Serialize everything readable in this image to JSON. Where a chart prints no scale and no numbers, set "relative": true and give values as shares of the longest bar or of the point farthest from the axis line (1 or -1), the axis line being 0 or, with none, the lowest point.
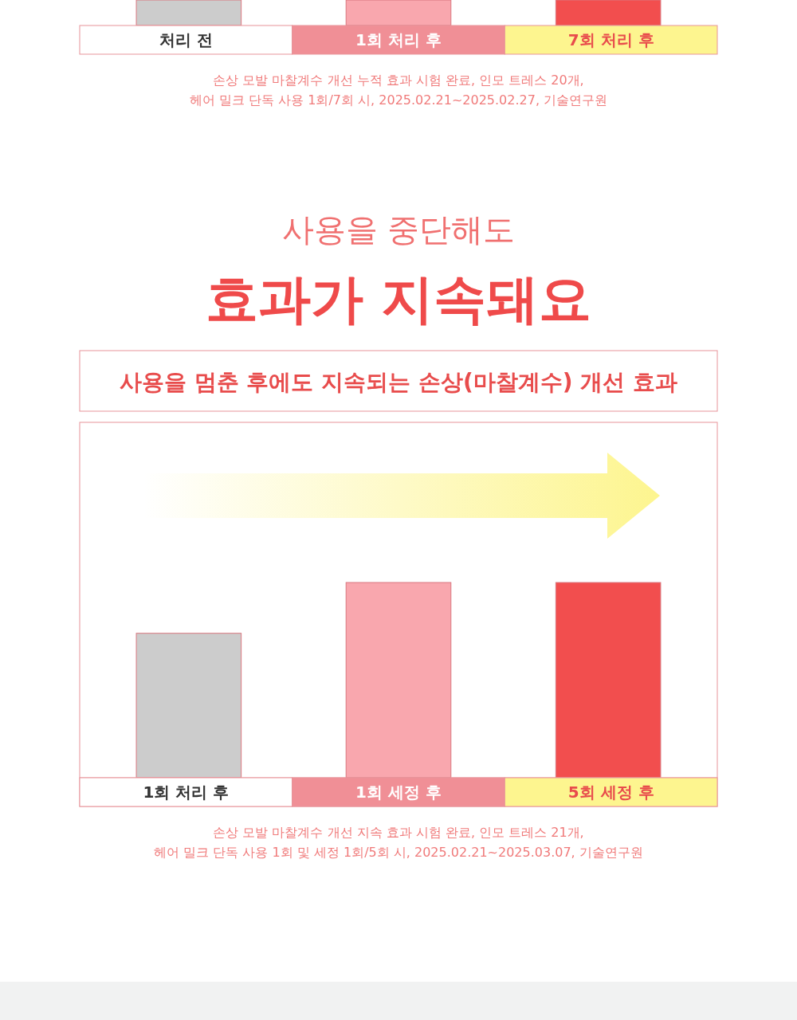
{
  "chart_data": [
    {
      "type": "other",
      "categories": [
        "처리 전",
        "1회 처리 후",
        "7회 처리 후"
      ],
      "annotations": [
        "손상 모발 마찰계수 개선 누적 효과 시험 완료, 인모 트레스 20개,",
        "헤어 밀크 단독 사용 1회/7회 시, 2025.02.21~2025.02.27, 기술연구원"
      ]
    },
    {
      "type": "bar",
      "subtitle": "사용을 중단해도",
      "title": "효과가 지속돼요",
      "categories": [
        "1회 처리 후",
        "1회 세정 후",
        "5회 세정 후"
      ],
      "values": [
        0.74,
        1,
        1
      ],
      "colors": [
        "#cccccc",
        "#f9a7ae",
        "#f24e4e"
      ],
      "relative": true,
      "annotations": [
        "사용을 멈춘 후에도 지속되는 손상(마찰계수) 개선 효과",
        "손상 모발 마찰계수 개선 지속 효과 시험 완료, 인모 트레스 21개,",
        "헤어 밀크 단독 사용 1회 및 세정 1회/5회 시, 2025.02.21~2025.03.07, 기술연구원"
      ]
    }
  ]
}
